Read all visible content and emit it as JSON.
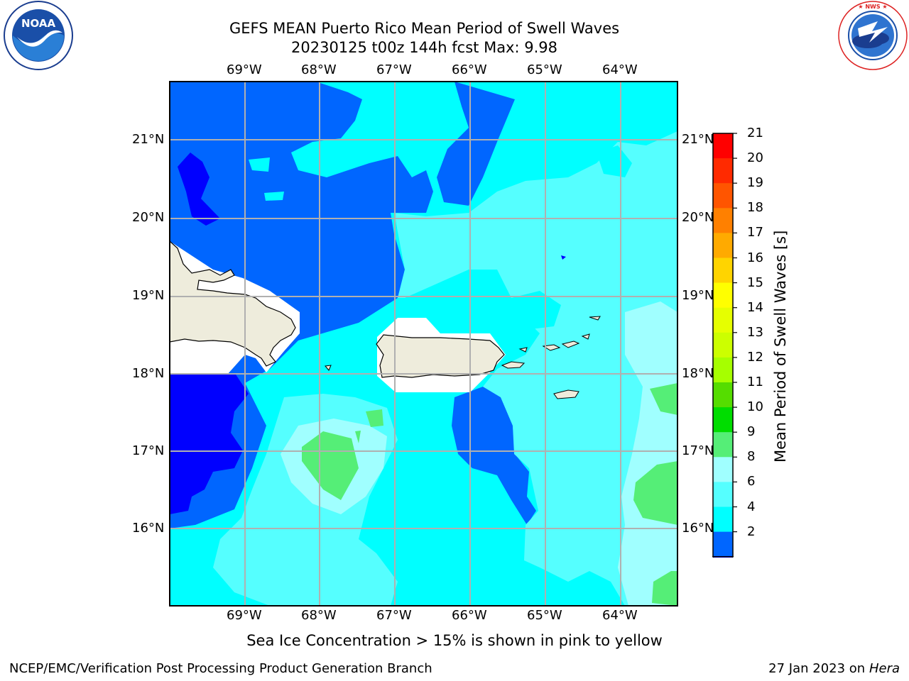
{
  "header": {
    "title_line1": "GEFS MEAN Puerto Rico Mean Period of Swell Waves",
    "title_line2": "20230125 t00z 144h fcst   Max: 9.98"
  },
  "logos": {
    "noaa_text": "NOAA",
    "noaa_ring": "NATIONAL OCEANIC AND ATMOSPHERIC ADMINISTRATION · U.S. DEPARTMENT OF COMMERCE",
    "nws_ring": "NATIONAL WEATHER SERVICE"
  },
  "map": {
    "lon_labels": [
      "69°W",
      "68°W",
      "67°W",
      "66°W",
      "65°W",
      "64°W"
    ],
    "lat_labels": [
      "21°N",
      "20°N",
      "19°N",
      "18°N",
      "17°N",
      "16°N"
    ],
    "caption": "Sea Ice Concentration > 15% is shown in pink to yellow",
    "colors": {
      "land": "#eeecdc",
      "gridline": "#b0b0b0",
      "swell_2_4": "#0066ff",
      "swell_4_6": "#00ffff",
      "swell_6_8": "#55ffff",
      "swell_8_9": "#a0ffff",
      "swell_9_10": "#55ee77",
      "swell_under_2": "#0000ff"
    }
  },
  "colorbar": {
    "label": "Mean Period of Swell Waves [s]",
    "ticks": [
      "21",
      "20",
      "19",
      "18",
      "17",
      "16",
      "15",
      "14",
      "13",
      "12",
      "11",
      "10",
      "9",
      "8",
      "6",
      "4",
      "2"
    ],
    "colors_top_to_bottom": [
      "#ff0000",
      "#ff2a00",
      "#ff5500",
      "#ff8000",
      "#ffaa00",
      "#ffd400",
      "#ffff00",
      "#e6ff00",
      "#ccff00",
      "#a6ff00",
      "#55dd00",
      "#00dd00",
      "#55ee77",
      "#a0ffff",
      "#55ffff",
      "#00ffff",
      "#0066ff"
    ],
    "extend_color": "#0000ff"
  },
  "footer": {
    "left": "NCEP/EMC/Verification Post Processing Product Generation Branch",
    "right_prefix": "27 Jan 2023 on ",
    "right_machine": "Hera"
  }
}
